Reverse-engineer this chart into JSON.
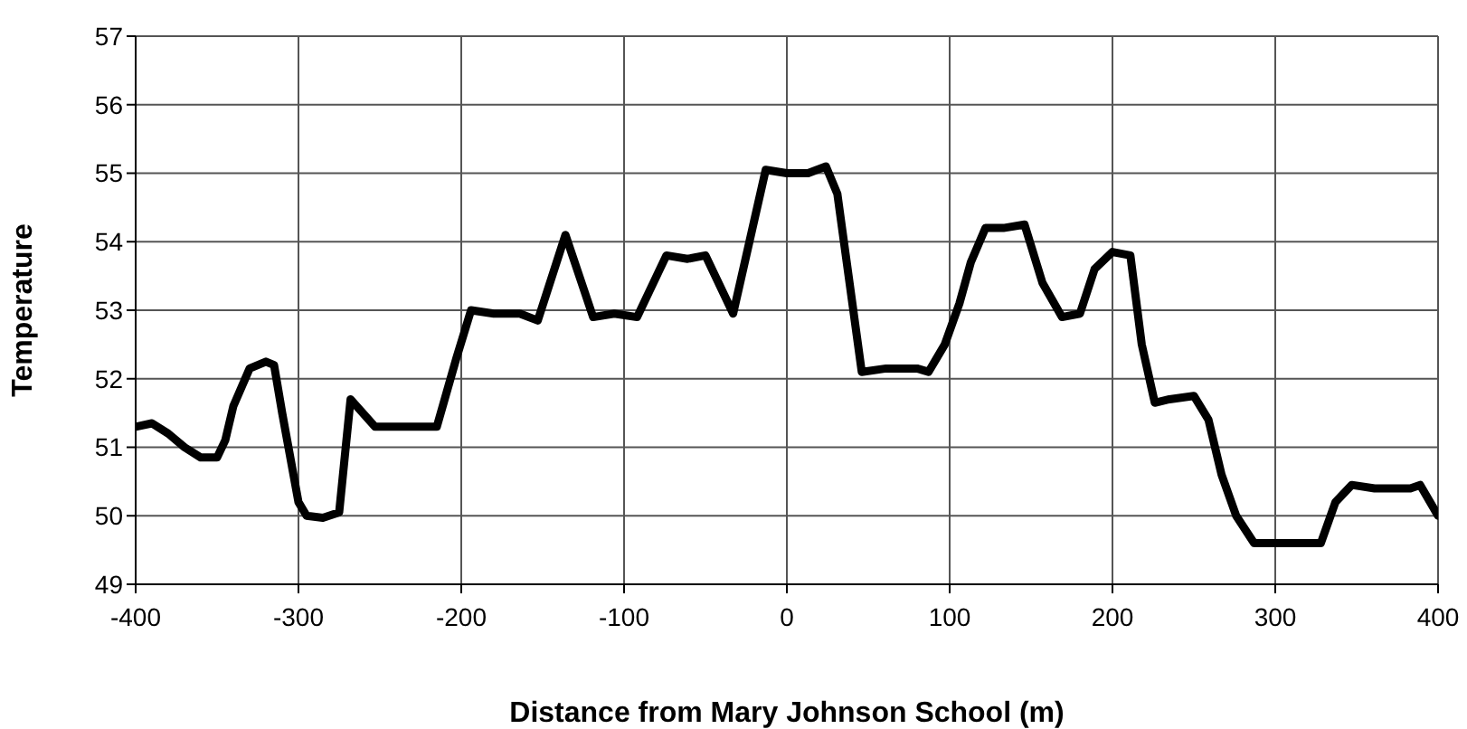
{
  "chart_data": {
    "type": "line",
    "xlabel": "Distance from Mary Johnson School (m)",
    "ylabel": "Temperature",
    "xlim": [
      -400,
      400
    ],
    "xticks": [
      -400,
      -300,
      -200,
      -100,
      0,
      100,
      200,
      300,
      400
    ],
    "ylim": [
      49,
      57
    ],
    "yticks": [
      49,
      50,
      51,
      52,
      53,
      54,
      55,
      56,
      57
    ],
    "grid": true,
    "marker": "none",
    "line_style": "solid",
    "series": [
      {
        "color": "#000000",
        "x": [
          -400,
          -390,
          -380,
          -370,
          -360,
          -350,
          -345,
          -340,
          -330,
          -320,
          -315,
          -310,
          -300,
          -295,
          -285,
          -275,
          -268,
          -253,
          -235,
          -215,
          -203,
          -194,
          -180,
          -164,
          -153,
          -136,
          -119,
          -106,
          -92,
          -74,
          -61,
          -50,
          -33,
          -13,
          0,
          13,
          24,
          31,
          46,
          61,
          80,
          87,
          97,
          106,
          113,
          122,
          133,
          146,
          157,
          169,
          180,
          189,
          200,
          211,
          218,
          226,
          235,
          250,
          259,
          267,
          276,
          287,
          298,
          317,
          328,
          337,
          347,
          361,
          383,
          389,
          400
        ],
        "values": [
          51.3,
          51.35,
          51.2,
          51.0,
          50.85,
          50.85,
          51.1,
          51.6,
          52.15,
          52.25,
          52.2,
          51.5,
          50.2,
          50.0,
          49.97,
          50.05,
          51.7,
          51.3,
          51.3,
          51.3,
          52.3,
          53.0,
          52.95,
          52.95,
          52.85,
          54.1,
          52.9,
          52.95,
          52.9,
          53.8,
          53.75,
          53.8,
          52.95,
          55.05,
          55.0,
          55.0,
          55.1,
          54.7,
          52.1,
          52.15,
          52.15,
          52.1,
          52.5,
          53.1,
          53.7,
          54.2,
          54.2,
          54.25,
          53.4,
          52.9,
          52.95,
          53.6,
          53.85,
          53.8,
          52.5,
          51.65,
          51.7,
          51.75,
          51.4,
          50.6,
          50.0,
          49.6,
          49.6,
          49.6,
          49.6,
          50.2,
          50.45,
          50.4,
          50.4,
          50.45,
          50.0
        ]
      }
    ]
  }
}
